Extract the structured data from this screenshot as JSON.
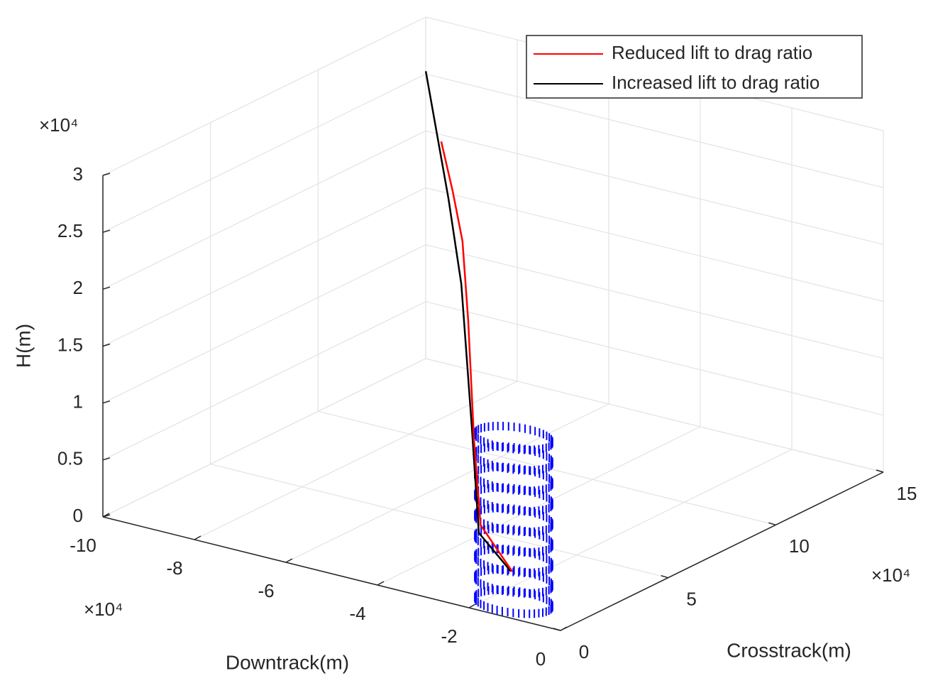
{
  "chart_data": {
    "type": "line3d",
    "x_label": "Downtrack(m)",
    "y_label": "Crosstrack(m)",
    "z_label": "H(m)",
    "x_exponent": "×10⁴",
    "y_exponent": "×10⁴",
    "z_exponent": "×10⁴",
    "xlim": [
      -10,
      0
    ],
    "ylim": [
      0,
      15
    ],
    "zlim": [
      0,
      3
    ],
    "xticks": [
      -10,
      -8,
      -6,
      -4,
      -2,
      0
    ],
    "yticks": [
      0,
      5,
      10,
      15
    ],
    "zticks": [
      0,
      0.5,
      1,
      1.5,
      2,
      2.5,
      3
    ],
    "grid": true,
    "legend": "northeast",
    "series": [
      {
        "name": "Reduced lift to drag ratio",
        "color": "#ff0000",
        "x": [
          -8.72,
          -7.76,
          -6.61,
          -5.31,
          -3.77,
          -2.5,
          -1.43
        ],
        "y": [
          13,
          11.5,
          9.5,
          7,
          4,
          1.6,
          0.8
        ],
        "z": [
          2.22,
          2.01,
          1.88,
          1.55,
          0.92,
          0.53,
          0.3
        ]
      },
      {
        "name": "Increased lift to drag ratio",
        "color": "#000000",
        "x": [
          -9.81,
          -7.62,
          -5.93,
          -3.82,
          -2.49,
          -1.46
        ],
        "y": [
          14.6,
          11,
          8,
          4,
          1.5,
          0.8
        ],
        "z": [
          2.58,
          2.01,
          1.71,
          1.04,
          0.47,
          0.3
        ]
      }
    ],
    "cylinder": {
      "color": "#0000ff",
      "center": [
        -1.4,
        0.8
      ],
      "radius": 0.77,
      "ring_z": [
        0,
        0.18,
        0.36,
        0.54,
        0.72,
        0.9,
        1.08,
        1.26,
        1.44
      ]
    }
  }
}
